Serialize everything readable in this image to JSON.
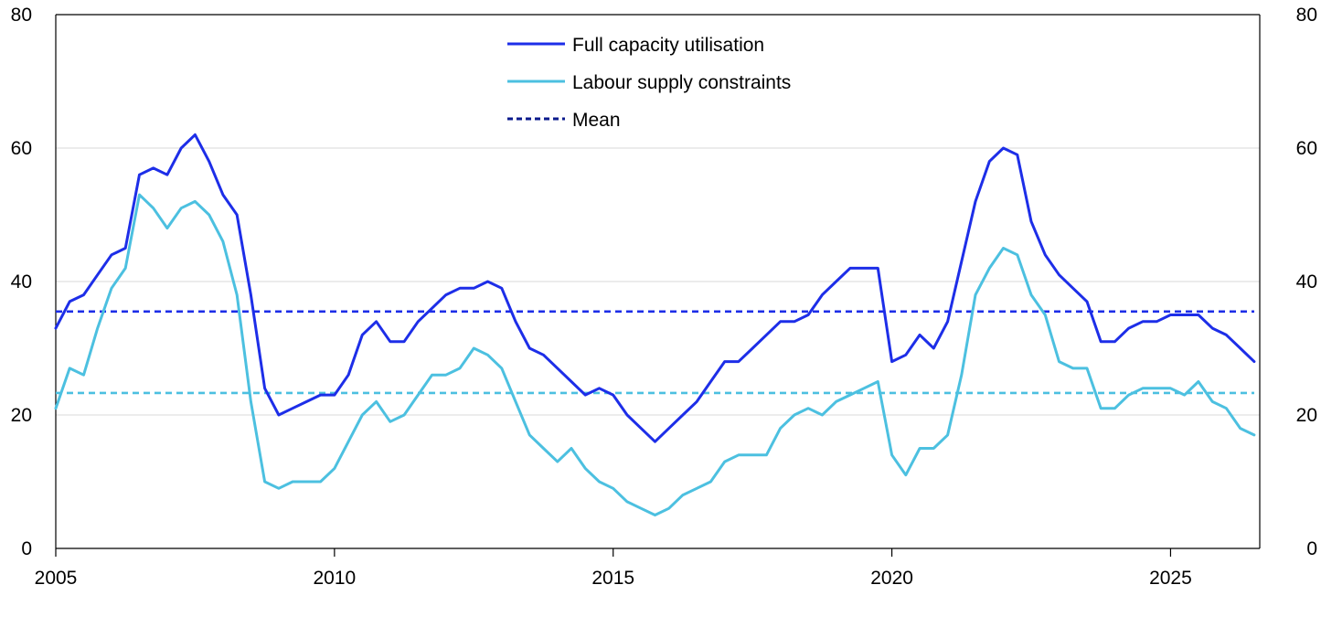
{
  "chart_data": {
    "type": "line",
    "x_unit": "year",
    "xlim": [
      2005,
      2026.6
    ],
    "ylim": [
      0,
      80
    ],
    "x_ticks": [
      "2005",
      "2010",
      "2015",
      "2020",
      "2025"
    ],
    "y_ticks": [
      "0",
      "20",
      "40",
      "60",
      "80"
    ],
    "grid": true,
    "legend_position": "top-center",
    "colors": {
      "full_capacity": "#1d2ee8",
      "labour_supply": "#4cc0e0",
      "mean_full": "#1d2ee8",
      "mean_labour": "#4cc0e0",
      "legend_mean": "#0a1a8c",
      "grid": "#d9d9d9",
      "axis": "#000000"
    },
    "x": [
      2005.0,
      2005.25,
      2005.5,
      2005.75,
      2006.0,
      2006.25,
      2006.5,
      2006.75,
      2007.0,
      2007.25,
      2007.5,
      2007.75,
      2008.0,
      2008.25,
      2008.5,
      2008.75,
      2009.0,
      2009.25,
      2009.5,
      2009.75,
      2010.0,
      2010.25,
      2010.5,
      2010.75,
      2011.0,
      2011.25,
      2011.5,
      2011.75,
      2012.0,
      2012.25,
      2012.5,
      2012.75,
      2013.0,
      2013.25,
      2013.5,
      2013.75,
      2014.0,
      2014.25,
      2014.5,
      2014.75,
      2015.0,
      2015.25,
      2015.5,
      2015.75,
      2016.0,
      2016.25,
      2016.5,
      2016.75,
      2017.0,
      2017.25,
      2017.5,
      2017.75,
      2018.0,
      2018.25,
      2018.5,
      2018.75,
      2019.0,
      2019.25,
      2019.5,
      2019.75,
      2020.0,
      2020.25,
      2020.5,
      2020.75,
      2021.0,
      2021.25,
      2021.5,
      2021.75,
      2022.0,
      2022.25,
      2022.5,
      2022.75,
      2023.0,
      2023.25,
      2023.5,
      2023.75,
      2024.0,
      2024.25,
      2024.5,
      2024.75,
      2025.0,
      2025.25,
      2025.5,
      2025.75,
      2026.0,
      2026.25,
      2026.5
    ],
    "series": [
      {
        "name": "Full capacity utilisation",
        "key": "full_capacity",
        "values": [
          33,
          37,
          38,
          41,
          44,
          45,
          56,
          57,
          56,
          60,
          62,
          58,
          53,
          50,
          38,
          24,
          20,
          21,
          22,
          23,
          23,
          26,
          32,
          34,
          31,
          31,
          34,
          36,
          38,
          39,
          39,
          40,
          39,
          34,
          30,
          29,
          27,
          25,
          23,
          24,
          23,
          20,
          18,
          16,
          18,
          20,
          22,
          25,
          28,
          28,
          30,
          32,
          34,
          34,
          35,
          38,
          40,
          42,
          42,
          42,
          28,
          29,
          32,
          30,
          34,
          43,
          52,
          58,
          60,
          59,
          49,
          44,
          41,
          39,
          37,
          31,
          31,
          33,
          34,
          34,
          35,
          35,
          35,
          33,
          32,
          30,
          28
        ]
      },
      {
        "name": "Labour supply constraints",
        "key": "labour_supply",
        "values": [
          21,
          27,
          26,
          33,
          39,
          42,
          53,
          51,
          48,
          51,
          52,
          50,
          46,
          38,
          22,
          10,
          9,
          10,
          10,
          10,
          12,
          16,
          20,
          22,
          19,
          20,
          23,
          26,
          26,
          27,
          30,
          29,
          27,
          22,
          17,
          15,
          13,
          15,
          12,
          10,
          9,
          7,
          6,
          5,
          6,
          8,
          9,
          10,
          13,
          14,
          14,
          14,
          18,
          20,
          21,
          20,
          22,
          23,
          24,
          25,
          14,
          11,
          15,
          15,
          17,
          26,
          38,
          42,
          45,
          44,
          38,
          35,
          28,
          27,
          27,
          21,
          21,
          23,
          24,
          24,
          24,
          23,
          25,
          22,
          21,
          18,
          17
        ]
      }
    ],
    "mean_lines": [
      {
        "key": "mean_full",
        "value": 35.5
      },
      {
        "key": "mean_labour",
        "value": 23.3
      }
    ],
    "legend": [
      {
        "label": "Full capacity utilisation",
        "key": "full_capacity",
        "style": "solid"
      },
      {
        "label": "Labour supply constraints",
        "key": "labour_supply",
        "style": "solid"
      },
      {
        "label": "Mean",
        "key": "legend_mean",
        "style": "dashed"
      }
    ]
  }
}
